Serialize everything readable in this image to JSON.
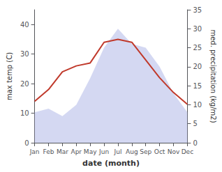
{
  "chart_data": {
    "type": "line",
    "xlabel": "date (month)",
    "ylabel": "max temp (C)",
    "y2label": "med. precipitation (kg/m2)",
    "categories": [
      "Jan",
      "Feb",
      "Mar",
      "Apr",
      "May",
      "Jun",
      "Jul",
      "Aug",
      "Sep",
      "Oct",
      "Nov",
      "Dec"
    ],
    "series": [
      {
        "type": "area",
        "axis": "y2",
        "color": "#b0b8e8",
        "values": [
          8,
          9,
          7,
          10,
          17,
          25,
          30,
          26,
          25,
          20,
          13,
          8
        ]
      },
      {
        "type": "line",
        "color": "#c0392b",
        "values": [
          14,
          18,
          24,
          26,
          27,
          34,
          35,
          34,
          28,
          22,
          17,
          13
        ]
      }
    ],
    "ylim": [
      0,
      45
    ],
    "yticks": [
      0,
      10,
      20,
      30,
      40
    ],
    "y2lim": [
      0,
      35
    ],
    "y2ticks": [
      0,
      5,
      10,
      15,
      20,
      25,
      30,
      35
    ],
    "grid": false
  }
}
